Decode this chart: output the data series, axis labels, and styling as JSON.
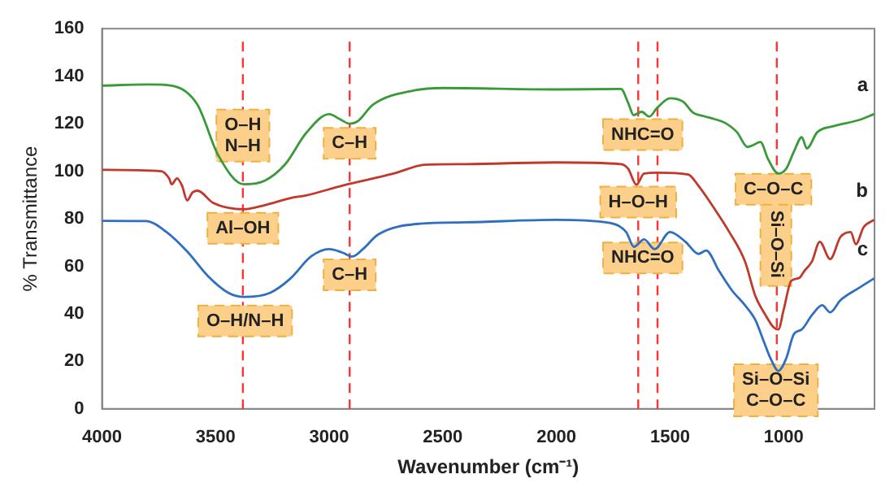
{
  "chart_data": {
    "type": "line",
    "xlabel": "Wavenumber (cm⁻¹)",
    "ylabel": "% Transmittance",
    "xlim": [
      4000,
      600
    ],
    "xticks": [
      4000,
      3500,
      3000,
      2500,
      2000,
      1500,
      1000
    ],
    "ylim": [
      0,
      160
    ],
    "yticks": [
      0,
      20,
      40,
      60,
      80,
      100,
      120,
      140,
      160
    ],
    "grid": false,
    "legend": false,
    "marker": "none",
    "line_style": "solid",
    "series": [
      {
        "name": "a",
        "color": "#3a9a3a",
        "x": [
          4000,
          3800,
          3693,
          3580,
          3490,
          3375,
          3284,
          3193,
          3102,
          3000,
          2955,
          2910,
          2875,
          2807,
          2625,
          2500,
          2000,
          1716,
          1684,
          1660,
          1625,
          1591,
          1557,
          1500,
          1443,
          1398,
          1352,
          1307,
          1261,
          1205,
          1159,
          1136,
          1102,
          1068,
          1023,
          989,
          955,
          920,
          898,
          852,
          784,
          670,
          602
        ],
        "values": [
          136,
          136.5,
          136,
          128,
          107,
          94.5,
          96,
          103,
          116,
          124,
          122,
          120,
          121,
          128,
          134,
          135,
          134.4,
          134.6,
          128.7,
          123.6,
          125,
          123,
          126.6,
          130.7,
          129.3,
          124.6,
          123.2,
          122,
          120.5,
          116.4,
          110.2,
          110.9,
          112.3,
          105,
          99,
          101,
          108.2,
          114.3,
          109.6,
          116.4,
          118.9,
          121.5,
          124
        ]
      },
      {
        "name": "b",
        "color": "#c0392b",
        "x": [
          4000,
          3739,
          3705,
          3693,
          3670,
          3648,
          3625,
          3602,
          3580,
          3511,
          3375,
          3284,
          3170,
          3102,
          2943,
          2716,
          2580,
          2398,
          2000,
          1716,
          1684,
          1648,
          1614,
          1557,
          1420,
          1375,
          1307,
          1239,
          1170,
          1125,
          1080,
          1045,
          1023,
          1000,
          966,
          932,
          909,
          875,
          841,
          795,
          750,
          705,
          682,
          648,
          602
        ],
        "values": [
          100.6,
          100,
          97,
          94.5,
          97,
          94,
          87.7,
          91,
          91.8,
          86.7,
          84,
          85.7,
          88.7,
          89.8,
          93.9,
          99,
          102.7,
          103,
          103.7,
          103,
          101,
          94.3,
          99,
          99.4,
          98.6,
          93.9,
          84.6,
          74.4,
          62,
          47.7,
          39.5,
          34.4,
          33.4,
          41.6,
          53.9,
          55,
          58,
          62.1,
          70.3,
          63,
          72.3,
          74.4,
          69.3,
          76.4,
          79.5
        ]
      },
      {
        "name": "c",
        "color": "#2f6fc0",
        "x": [
          4000,
          3807,
          3716,
          3625,
          3534,
          3443,
          3375,
          3261,
          3170,
          3080,
          3000,
          2943,
          2898,
          2852,
          2784,
          2602,
          2398,
          2000,
          1784,
          1693,
          1659,
          1614,
          1568,
          1500,
          1432,
          1375,
          1341,
          1284,
          1227,
          1170,
          1125,
          1091,
          1057,
          1023,
          989,
          955,
          920,
          875,
          830,
          795,
          750,
          670,
          602
        ],
        "values": [
          79.1,
          79,
          74.4,
          66.2,
          55.9,
          48.8,
          47.1,
          48.8,
          54.9,
          64.1,
          67.2,
          65.8,
          64.1,
          67.2,
          73.4,
          77.9,
          78.5,
          79.5,
          78.5,
          74.4,
          68.2,
          71.3,
          67.2,
          74.4,
          70.3,
          65.2,
          66.6,
          58,
          49.8,
          43.6,
          37.5,
          29.3,
          21.1,
          16,
          21.1,
          31.4,
          33.4,
          39.5,
          43.6,
          40.6,
          45.7,
          50.8,
          54.9
        ]
      }
    ],
    "ref_lines": [
      {
        "axis": "x",
        "value": 3380,
        "color": "#ff3333",
        "line_style": "dashed"
      },
      {
        "axis": "x",
        "value": 2910,
        "color": "#ff3333",
        "line_style": "dashed"
      },
      {
        "axis": "x",
        "value": 1640,
        "color": "#ff3333",
        "line_style": "dashed"
      },
      {
        "axis": "x",
        "value": 1555,
        "color": "#ff3333",
        "line_style": "dashed"
      },
      {
        "axis": "x",
        "value": 1030,
        "color": "#ff3333",
        "line_style": "dashed"
      }
    ],
    "annotations": [
      {
        "text": "O–H\nN–H",
        "x": 3380,
        "y": 115
      },
      {
        "text": "C–H",
        "x": 2910,
        "y": 111.7
      },
      {
        "text": "Al–OH",
        "x": 3380,
        "y": 76
      },
      {
        "text": "C–H",
        "x": 2910,
        "y": 56.4
      },
      {
        "text": "O–H/N–H",
        "x": 3370,
        "y": 37
      },
      {
        "text": "NHC=O",
        "x": 1620,
        "y": 115.4
      },
      {
        "text": "H–O–H",
        "x": 1640,
        "y": 87
      },
      {
        "text": "NHC=O",
        "x": 1620,
        "y": 63.5
      },
      {
        "text": "Si–O–Si",
        "x": 1034,
        "y": 69.3
      },
      {
        "text": "C–O–C",
        "x": 1045,
        "y": 92.4
      },
      {
        "text": "Si–O–Si\nC–O–C",
        "x": 1034,
        "y": 7.8
      }
    ]
  }
}
